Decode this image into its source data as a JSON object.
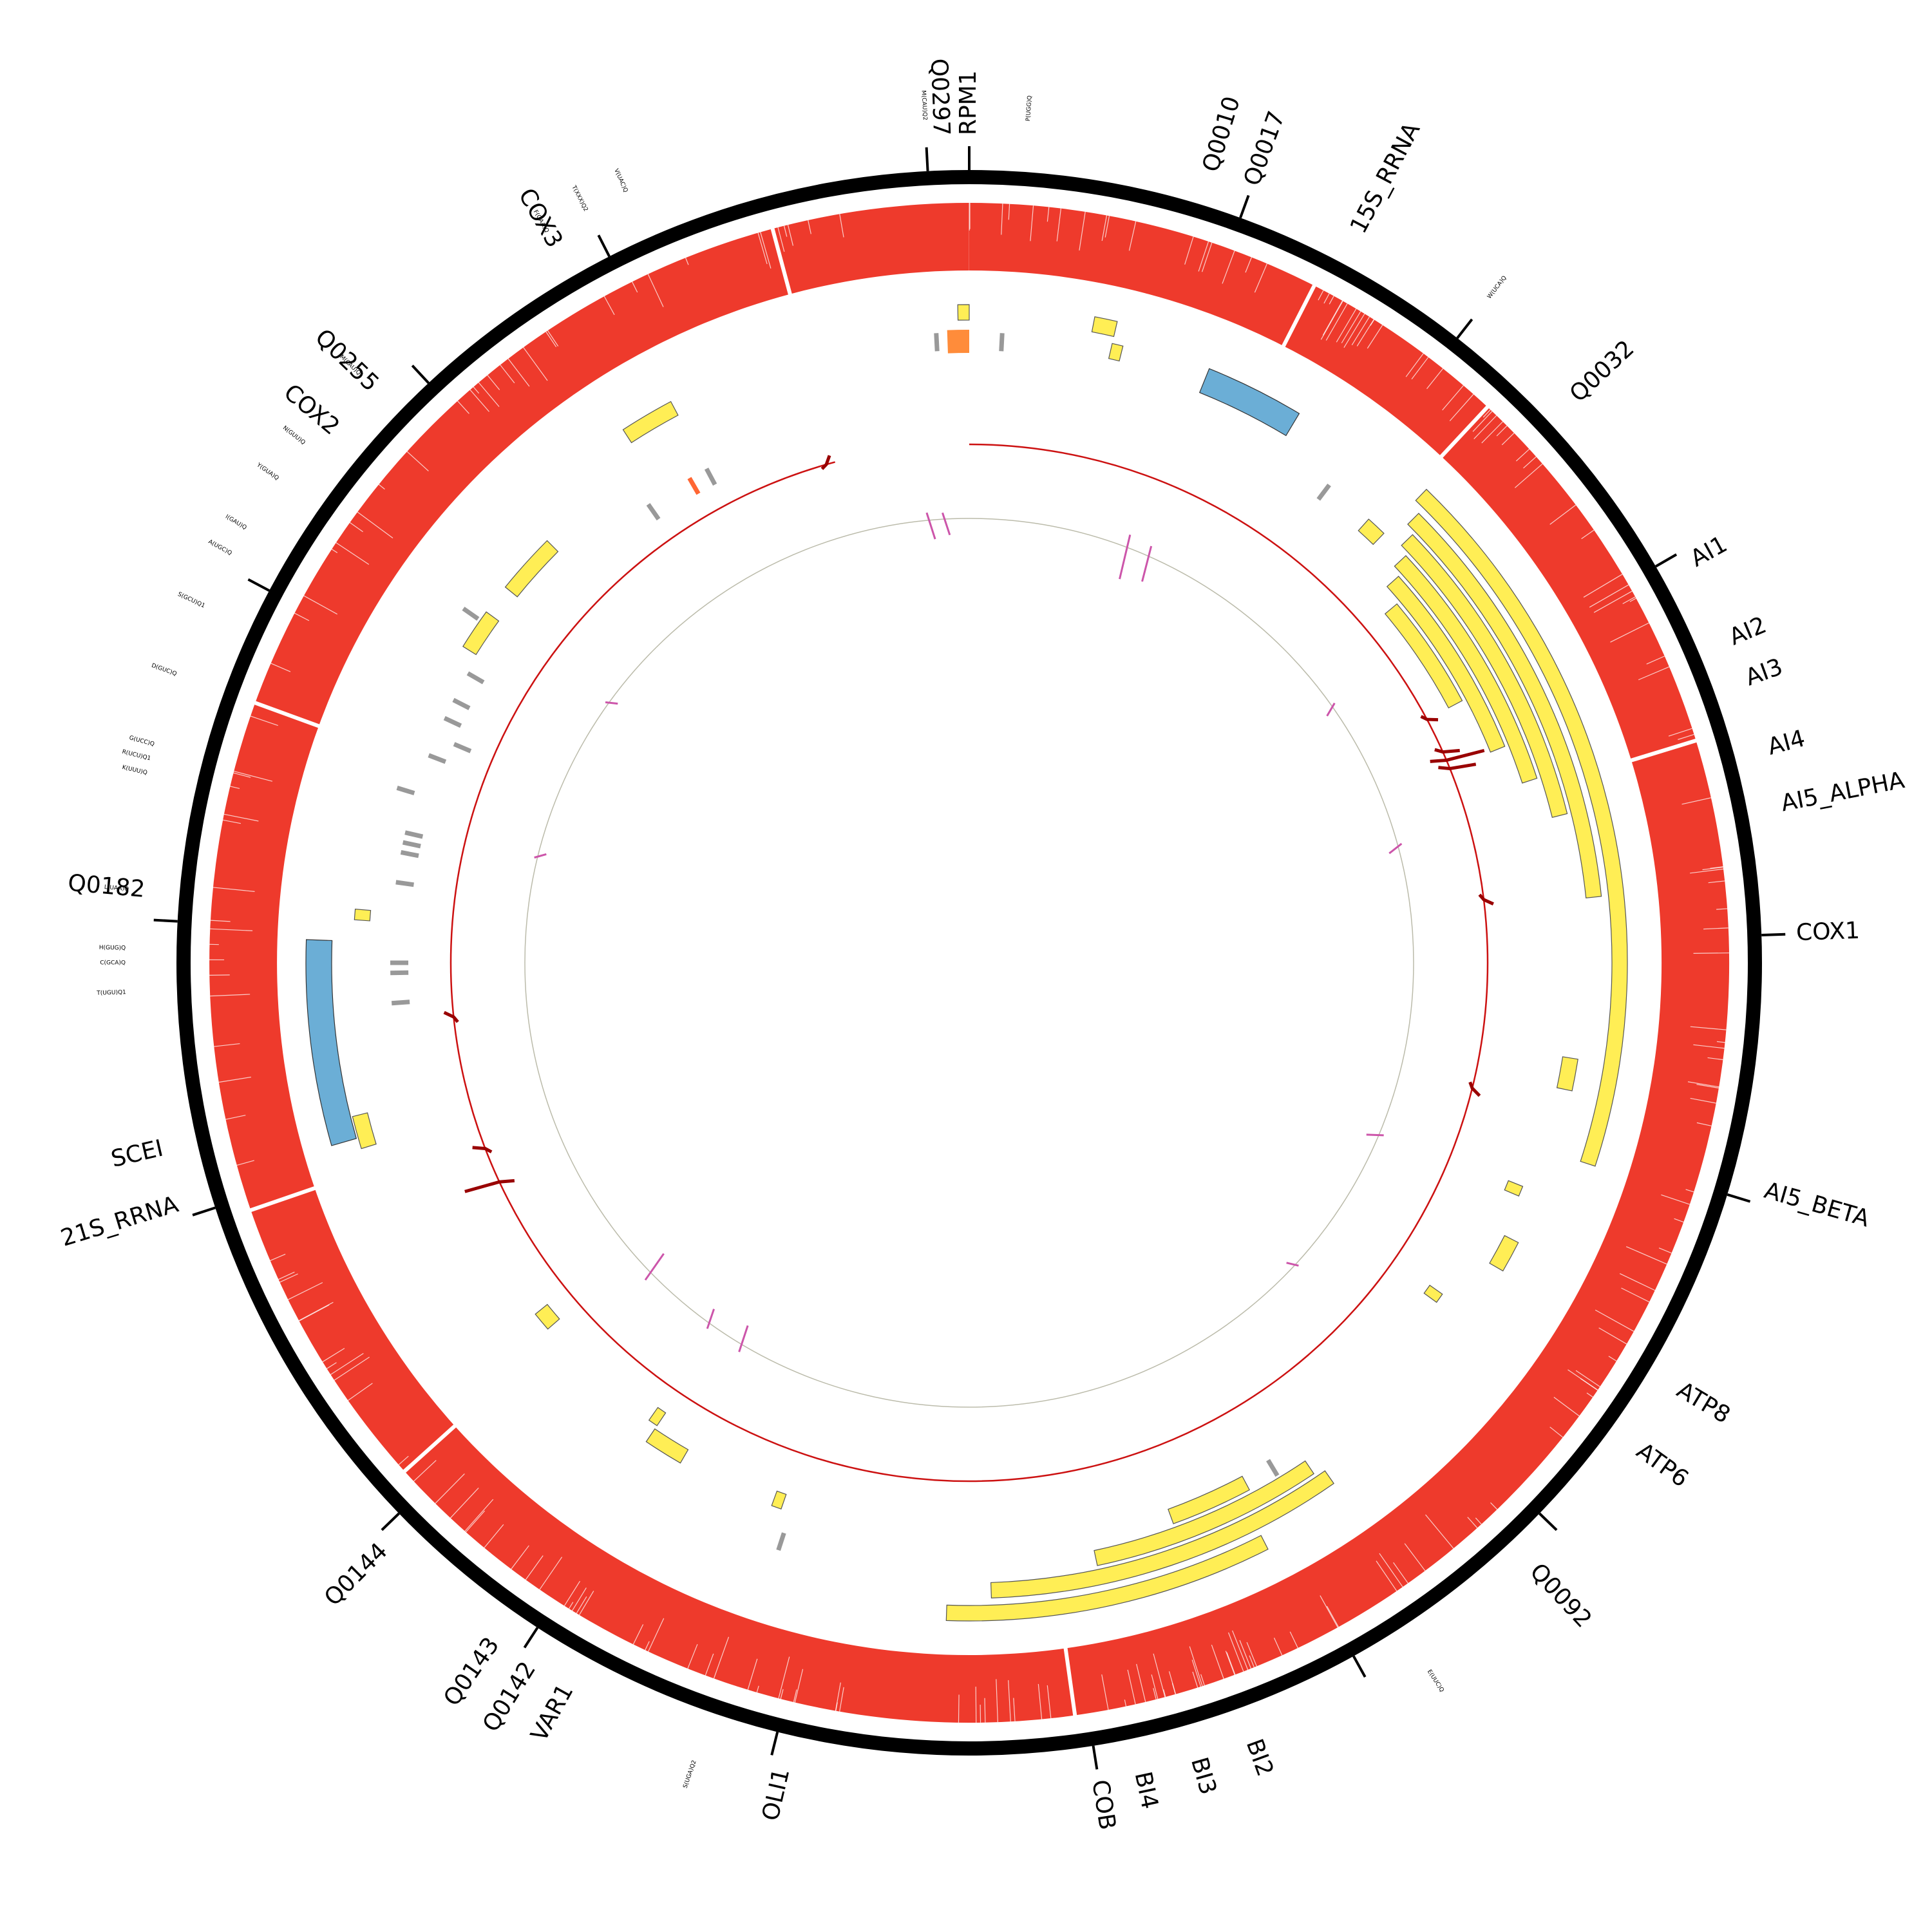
{
  "chart_data": {
    "type": "circos",
    "colors": {
      "backbone": "#000000",
      "coverage": "#ee3a2c",
      "exon": "#ffee55",
      "rrna": "#6baed6",
      "trna": "#999999",
      "trna_highlight": "#ff6633",
      "ncrna": "#ff8c3a",
      "gc_line": "#cc1111",
      "gc_peak": "#990000",
      "skew_line": "#bbbbaa",
      "skew_peak": "#cc55aa"
    },
    "gene_labels": [
      {
        "text": "RPM1",
        "angle": 0
      },
      {
        "text": "Q0297",
        "angle": -2
      },
      {
        "text": "Q0010",
        "angle": 17
      },
      {
        "text": "Q0017",
        "angle": 20
      },
      {
        "text": "15S_RRNA",
        "angle": 28
      },
      {
        "text": "Q0032",
        "angle": 47
      },
      {
        "text": "AI1",
        "angle": 61
      },
      {
        "text": "AI2",
        "angle": 67
      },
      {
        "text": "AI3",
        "angle": 70
      },
      {
        "text": "AI4",
        "angle": 75
      },
      {
        "text": "AI5_ALPHA",
        "angle": 79
      },
      {
        "text": "COX1",
        "angle": 88
      },
      {
        "text": "AI5_BETA",
        "angle": 106
      },
      {
        "text": "ATP8",
        "angle": 121
      },
      {
        "text": "ATP6",
        "angle": 126
      },
      {
        "text": "Q0092",
        "angle": 137
      },
      {
        "text": "BI2",
        "angle": 160
      },
      {
        "text": "BI3",
        "angle": 164
      },
      {
        "text": "BI4",
        "angle": 168
      },
      {
        "text": "COB",
        "angle": 171
      },
      {
        "text": "OLI1",
        "angle": 193
      },
      {
        "text": "VAR1",
        "angle": 209
      },
      {
        "text": "Q0142",
        "angle": 212
      },
      {
        "text": "Q0143",
        "angle": 215
      },
      {
        "text": "Q0144",
        "angle": 225
      },
      {
        "text": "21S_RRNA",
        "angle": 253
      },
      {
        "text": "SCEI",
        "angle": 257
      },
      {
        "text": "Q0182",
        "angle": 275
      },
      {
        "text": "COX2",
        "angle": 310
      },
      {
        "text": "Q0255",
        "angle": 314
      },
      {
        "text": "COX3",
        "angle": 330
      }
    ],
    "trna_labels": [
      {
        "text": "M(CAU)Q2",
        "angle": -3
      },
      {
        "text": "P(UGG)Q",
        "angle": 4
      },
      {
        "text": "W(UCA)Q",
        "angle": 38
      },
      {
        "text": "E(UUC)Q",
        "angle": 147
      },
      {
        "text": "S(UGA)Q2",
        "angle": 199
      },
      {
        "text": "L(UAA)Q",
        "angle": 275
      },
      {
        "text": "H(GUG)Q",
        "angle": 271
      },
      {
        "text": "C(GCA)Q",
        "angle": 270
      },
      {
        "text": "T(UGU)Q1",
        "angle": 268
      },
      {
        "text": "K(UUU)Q",
        "angle": 283
      },
      {
        "text": "R(UCU)Q1",
        "angle": 284
      },
      {
        "text": "G(UCC)Q",
        "angle": 285
      },
      {
        "text": "D(GUC)Q",
        "angle": 290
      },
      {
        "text": "S(GCU)Q1",
        "angle": 295
      },
      {
        "text": "A(UGC)Q",
        "angle": 299
      },
      {
        "text": "I(GAU)Q",
        "angle": 301
      },
      {
        "text": "Y(GUA)Q",
        "angle": 305
      },
      {
        "text": "N(GUU)Q",
        "angle": 308
      },
      {
        "text": "M(CAU)Q1",
        "angle": 314
      },
      {
        "text": "F(GAA)Q",
        "angle": 330
      },
      {
        "text": "T(XXX)Q2",
        "angle": 333
      },
      {
        "text": "V(UAC)Q",
        "angle": 336
      }
    ],
    "ticks": [
      -3,
      0,
      20,
      38,
      60,
      88,
      107,
      134,
      151,
      171,
      194,
      213,
      226,
      252,
      273,
      298,
      317,
      333
    ],
    "coverage_gaps": [
      27,
      43,
      73,
      172,
      228,
      251,
      290,
      345
    ],
    "exon_blocks": [
      {
        "a1": 44,
        "a2": 108,
        "level": 0
      },
      {
        "a1": 45,
        "a2": 84,
        "level": 1
      },
      {
        "a1": 46,
        "a2": 76,
        "level": 2
      },
      {
        "a1": 47,
        "a2": 72,
        "level": 3
      },
      {
        "a1": 48,
        "a2": 68,
        "level": 4
      },
      {
        "a1": 50,
        "a2": 62,
        "level": 5
      },
      {
        "a1": 11,
        "a2": 13,
        "level": 0
      },
      {
        "a1": 13,
        "a2": 14,
        "level": 1
      },
      {
        "a1": 42,
        "a2": 44,
        "level": 3
      },
      {
        "a1": 99,
        "a2": 102,
        "level": 2
      },
      {
        "a1": 112,
        "a2": 113,
        "level": 3
      },
      {
        "a1": 117,
        "a2": 120,
        "level": 2
      },
      {
        "a1": 125,
        "a2": 126,
        "level": 4
      },
      {
        "a1": 160,
        "a2": 152,
        "level": 3
      },
      {
        "a1": 168,
        "a2": 146,
        "level": 2
      },
      {
        "a1": 178,
        "a2": 145,
        "level": 1
      },
      {
        "a1": 182,
        "a2": 153,
        "level": 0
      },
      {
        "a1": 199,
        "a2": 200,
        "level": 4
      },
      {
        "a1": 210,
        "a2": 214,
        "level": 4
      },
      {
        "a1": 214,
        "a2": 215,
        "level": 5
      },
      {
        "a1": 229,
        "a2": 231,
        "level": 5
      },
      {
        "a1": 253,
        "a2": 256,
        "level": 1
      },
      {
        "a1": 274,
        "a2": 275,
        "level": 2
      },
      {
        "a1": 302,
        "a2": 306,
        "level": 3
      },
      {
        "a1": 309,
        "a2": 315,
        "level": 3
      },
      {
        "a1": 327,
        "a2": 332,
        "level": 1
      },
      {
        "a1": 359,
        "a2": 360,
        "level": 0
      }
    ],
    "rrna_blocks": [
      {
        "a1": 22,
        "a2": 31,
        "level": 1
      },
      {
        "a1": 254,
        "a2": 272,
        "level": 0
      }
    ],
    "trna_marks": [
      {
        "angle": -3,
        "level": 6,
        "hl": false
      },
      {
        "angle": 3,
        "level": 6,
        "hl": false
      },
      {
        "angle": 37,
        "level": 3,
        "hl": false
      },
      {
        "angle": 149,
        "level": 3,
        "hl": false
      },
      {
        "angle": 198,
        "level": 2,
        "hl": false
      },
      {
        "angle": 270,
        "level": 4,
        "hl": false
      },
      {
        "angle": 269,
        "level": 4,
        "hl": false
      },
      {
        "angle": 266,
        "level": 4,
        "hl": false
      },
      {
        "angle": 278,
        "level": 4,
        "hl": false
      },
      {
        "angle": 281,
        "level": 4,
        "hl": false
      },
      {
        "angle": 282,
        "level": 4,
        "hl": false
      },
      {
        "angle": 283,
        "level": 4,
        "hl": false
      },
      {
        "angle": 287,
        "level": 3,
        "hl": false
      },
      {
        "angle": 291,
        "level": 4,
        "hl": false
      },
      {
        "angle": 293,
        "level": 5,
        "hl": false
      },
      {
        "angle": 295,
        "level": 4,
        "hl": false
      },
      {
        "angle": 297,
        "level": 4,
        "hl": false
      },
      {
        "angle": 300,
        "level": 4,
        "hl": false
      },
      {
        "angle": 305,
        "level": 2,
        "hl": false
      },
      {
        "angle": 325,
        "level": 5,
        "hl": false
      },
      {
        "angle": 330,
        "level": 5,
        "hl": true
      },
      {
        "angle": 332,
        "level": 5,
        "hl": false
      }
    ],
    "ncrna_marks": [
      {
        "angle": -1,
        "level": 6
      }
    ],
    "gc_peaks": [
      {
        "angle": 67,
        "amp": 60
      },
      {
        "angle": 68,
        "amp": 40
      },
      {
        "angle": 66,
        "amp": 25
      },
      {
        "angle": 62,
        "amp": 15
      },
      {
        "angle": 83,
        "amp": 14
      },
      {
        "angle": 104,
        "amp": 14
      },
      {
        "angle": 245,
        "amp": 55
      },
      {
        "angle": 249,
        "amp": 18
      },
      {
        "angle": 264,
        "amp": 14
      },
      {
        "angle": 344,
        "amp": 12
      }
    ],
    "gc_arc": {
      "start": 0,
      "end": 345
    },
    "skew_peaks": [
      {
        "angle": -5,
        "amp": 30
      },
      {
        "angle": -3,
        "amp": 25
      },
      {
        "angle": 21,
        "amp": 50
      },
      {
        "angle": 24,
        "amp": 40
      },
      {
        "angle": 55,
        "amp": 15
      },
      {
        "angle": 75,
        "amp": 16
      },
      {
        "angle": 113,
        "amp": 18
      },
      {
        "angle": 133,
        "amp": 12
      },
      {
        "angle": 211,
        "amp": 30
      },
      {
        "angle": 216,
        "amp": 22
      },
      {
        "angle": 226,
        "amp": 35
      },
      {
        "angle": 284,
        "amp": 12
      },
      {
        "angle": 306,
        "amp": 12
      }
    ]
  }
}
